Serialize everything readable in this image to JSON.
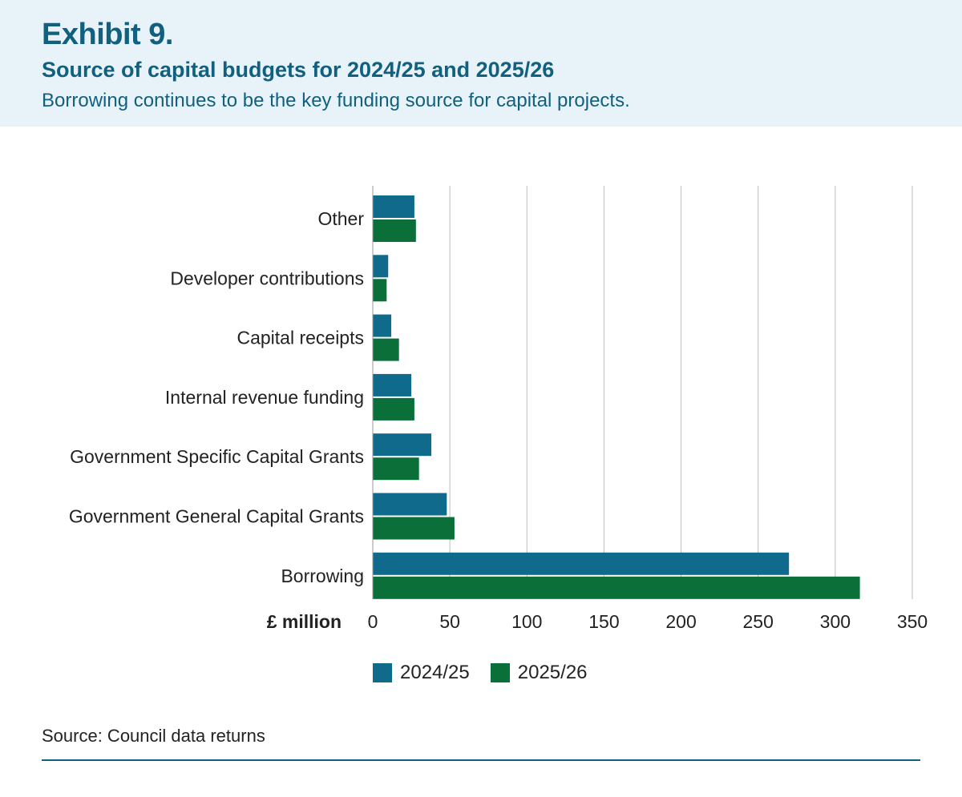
{
  "header": {
    "exhibit": "Exhibit 9.",
    "title": "Source of capital budgets for 2024/25 and 2025/26",
    "subtitle": "Borrowing continues to be the key funding source for capital projects."
  },
  "colors": {
    "header_bg": "#e7f3f8",
    "accent": "#12607f",
    "series_2024": "#0f6a8c",
    "series_2025": "#0b6f3a",
    "gridline": "#bdbdbd"
  },
  "chart_data": {
    "type": "bar",
    "orientation": "horizontal",
    "categories": [
      "Other",
      "Developer contributions",
      "Capital receipts",
      "Internal revenue funding",
      "Government Specific Capital Grants",
      "Government General Capital Grants",
      "Borrowing"
    ],
    "series": [
      {
        "name": "2024/25",
        "values": [
          27,
          10,
          12,
          25,
          38,
          48,
          270
        ]
      },
      {
        "name": "2025/26",
        "values": [
          28,
          9,
          17,
          27,
          30,
          53,
          316
        ]
      }
    ],
    "xlabel": "£ million",
    "xlim": [
      0,
      350
    ],
    "xticks": [
      "0",
      "50",
      "100",
      "150",
      "200",
      "250",
      "300",
      "350"
    ],
    "grid": true,
    "legend_position": "bottom"
  },
  "footer": {
    "source": "Source: Council data returns"
  }
}
